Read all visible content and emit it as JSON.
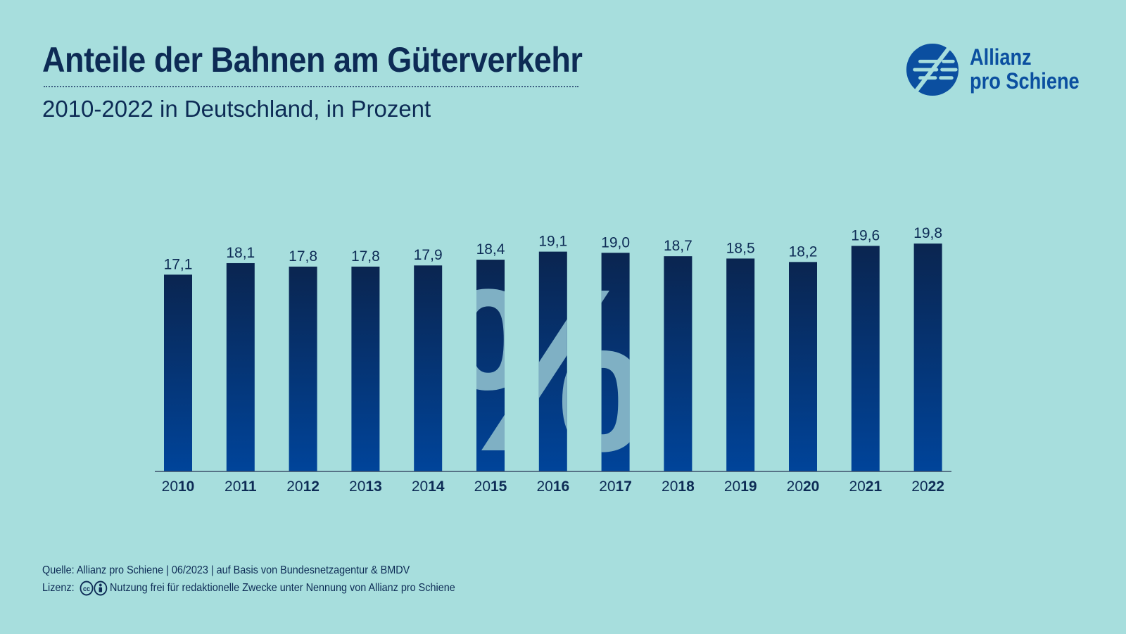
{
  "header": {
    "title": "Anteile der Bahnen am Güterverkehr",
    "subtitle": "2010-2022 in Deutschland, in Prozent"
  },
  "logo": {
    "line1": "Allianz",
    "line2": "pro Schiene",
    "icon": "allianz-pro-schiene-logo-icon"
  },
  "colors": {
    "background": "#a7dedd",
    "bar_top": "#0a2550",
    "bar_bottom": "#00449a",
    "text": "#0d2b55",
    "watermark": "#7fb0c4"
  },
  "chart_data": {
    "type": "bar",
    "categories": [
      "2010",
      "2011",
      "2012",
      "2013",
      "2014",
      "2015",
      "2016",
      "2017",
      "2018",
      "2019",
      "2020",
      "2021",
      "2022"
    ],
    "category_prefixes": [
      "20",
      "20",
      "20",
      "20",
      "20",
      "20",
      "20",
      "20",
      "20",
      "20",
      "20",
      "20",
      "20"
    ],
    "category_suffixes": [
      "10",
      "11",
      "12",
      "13",
      "14",
      "15",
      "16",
      "17",
      "18",
      "19",
      "20",
      "21",
      "22"
    ],
    "values": [
      17.1,
      18.1,
      17.8,
      17.8,
      17.9,
      18.4,
      19.1,
      19.0,
      18.7,
      18.5,
      18.2,
      19.6,
      19.8
    ],
    "data_labels": [
      "17,1",
      "18,1",
      "17,8",
      "17,8",
      "17,9",
      "18,4",
      "19,1",
      "19,0",
      "18,7",
      "18,5",
      "18,2",
      "19,6",
      "19,8"
    ],
    "title": "Anteile der Bahnen am Güterverkehr",
    "subtitle": "2010-2022 in Deutschland, in Prozent",
    "xlabel": "",
    "ylabel": "",
    "ylim": [
      0,
      21.4
    ],
    "grid": false,
    "legend": "none",
    "watermark": "%"
  },
  "footer": {
    "source": "Quelle: Allianz pro Schiene | 06/2023 | auf Basis von Bundesnetzagentur & BMDV",
    "license_label": "Lizenz:",
    "license_text": "Nutzung frei für redaktionelle Zwecke unter Nennung von Allianz pro Schiene",
    "license_icons": [
      "cc-icon",
      "by-attribution-icon"
    ]
  }
}
